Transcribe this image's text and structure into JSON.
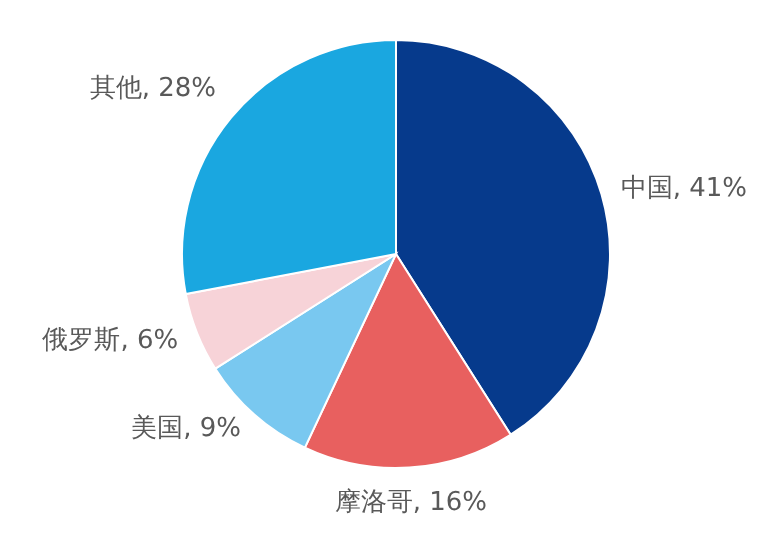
{
  "chart_data": {
    "type": "pie",
    "categories": [
      "中国",
      "摩洛哥",
      "美国",
      "俄罗斯",
      "其他"
    ],
    "values": [
      41,
      16,
      9,
      6,
      28
    ],
    "value_labels": [
      "41%",
      "16%",
      "9%",
      "6%",
      "28%"
    ],
    "colors": [
      "#063a8c",
      "#e8605f",
      "#79c8f0",
      "#f7d3d8",
      "#1aa7e0"
    ]
  }
}
